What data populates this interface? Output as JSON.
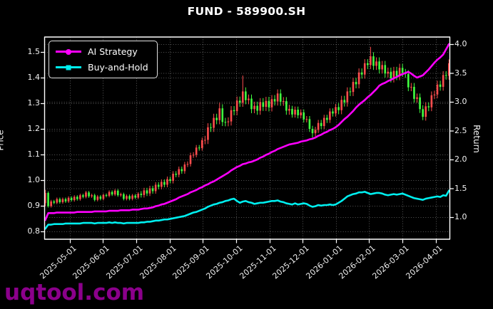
{
  "title": "FUND - 589900.SH",
  "watermark": "uqtool.com",
  "legend": [
    {
      "label": "AI Strategy",
      "color": "#FF00FF",
      "marker": "circle"
    },
    {
      "label": "Buy-and-Hold",
      "color": "#00EFEF",
      "marker": "square"
    }
  ],
  "axes": {
    "left_label": "Price",
    "right_label": "Return",
    "left_ticks": [
      0.8,
      0.9,
      1.0,
      1.1,
      1.2,
      1.3,
      1.4,
      1.5
    ],
    "right_ticks": [
      1.0,
      1.5,
      2.0,
      2.5,
      3.0,
      3.5,
      4.0
    ],
    "x_tick_labels": [
      "2025-05-01",
      "2025-06-01",
      "2025-07-01",
      "2025-08-01",
      "2025-09-01",
      "2025-10-01",
      "2025-11-01",
      "2025-12-01",
      "2026-01-01",
      "2026-02-01",
      "2026-03-01",
      "2026-04-01"
    ],
    "x_tick_pos": [
      8.4,
      19.85,
      31.3,
      42.8,
      54.2,
      65.7,
      77.2,
      88.6,
      100.1,
      111.5,
      123.0,
      134.5
    ]
  },
  "chart_data": {
    "type": "candlestick+line",
    "title": "FUND - 589900.SH",
    "ylabel_left": "Price",
    "ylabel_right": "Return",
    "ylim_left": [
      0.77,
      1.56
    ],
    "ylim_right": [
      0.62,
      4.12
    ],
    "grid": true,
    "legend_position": "upper-left",
    "colors": {
      "up": "#FF4D4D",
      "down": "#41FF41",
      "ai": "#FF00FF",
      "bh": "#00EFEF"
    },
    "candles_format": [
      "open",
      "high",
      "low",
      "close"
    ],
    "candles": [
      [
        0.91,
        0.962,
        0.898,
        0.95
      ],
      [
        0.95,
        0.956,
        0.893,
        0.899
      ],
      [
        0.899,
        0.923,
        0.893,
        0.917
      ],
      [
        0.917,
        0.923,
        0.906,
        0.912
      ],
      [
        0.912,
        0.932,
        0.906,
        0.926
      ],
      [
        0.926,
        0.932,
        0.908,
        0.914
      ],
      [
        0.914,
        0.932,
        0.908,
        0.926
      ],
      [
        0.926,
        0.932,
        0.911,
        0.917
      ],
      [
        0.917,
        0.937,
        0.911,
        0.931
      ],
      [
        0.931,
        0.937,
        0.916,
        0.922
      ],
      [
        0.922,
        0.941,
        0.916,
        0.935
      ],
      [
        0.935,
        0.941,
        0.92,
        0.926
      ],
      [
        0.926,
        0.947,
        0.92,
        0.941
      ],
      [
        0.941,
        0.947,
        0.929,
        0.935
      ],
      [
        0.935,
        0.958,
        0.929,
        0.952
      ],
      [
        0.952,
        0.958,
        0.931,
        0.937
      ],
      [
        0.937,
        0.947,
        0.931,
        0.941
      ],
      [
        0.941,
        0.947,
        0.917,
        0.923
      ],
      [
        0.923,
        0.942,
        0.917,
        0.936
      ],
      [
        0.936,
        0.942,
        0.921,
        0.927
      ],
      [
        0.927,
        0.948,
        0.921,
        0.942
      ],
      [
        0.942,
        0.948,
        0.933,
        0.939
      ],
      [
        0.939,
        0.96,
        0.933,
        0.954
      ],
      [
        0.954,
        0.96,
        0.938,
        0.944
      ],
      [
        0.944,
        0.965,
        0.938,
        0.959
      ],
      [
        0.959,
        0.965,
        0.935,
        0.941
      ],
      [
        0.941,
        0.951,
        0.935,
        0.945
      ],
      [
        0.945,
        0.951,
        0.921,
        0.927
      ],
      [
        0.927,
        0.944,
        0.921,
        0.938
      ],
      [
        0.938,
        0.944,
        0.921,
        0.927
      ],
      [
        0.927,
        0.946,
        0.921,
        0.94
      ],
      [
        0.94,
        0.946,
        0.926,
        0.932
      ],
      [
        0.932,
        0.953,
        0.926,
        0.947
      ],
      [
        0.947,
        0.957,
        0.932,
        0.942
      ],
      [
        0.942,
        0.97,
        0.932,
        0.96
      ],
      [
        0.96,
        0.97,
        0.938,
        0.948
      ],
      [
        0.948,
        0.978,
        0.938,
        0.968
      ],
      [
        0.968,
        0.978,
        0.947,
        0.957
      ],
      [
        0.957,
        0.992,
        0.947,
        0.982
      ],
      [
        0.982,
        0.992,
        0.964,
        0.974
      ],
      [
        0.974,
        1.003,
        0.964,
        0.993
      ],
      [
        0.993,
        1.003,
        0.972,
        0.982
      ],
      [
        0.982,
        1.014,
        0.972,
        1.004
      ],
      [
        1.004,
        1.014,
        0.987,
        0.997
      ],
      [
        0.997,
        1.035,
        0.987,
        1.025
      ],
      [
        1.025,
        1.035,
        1.011,
        1.021
      ],
      [
        1.021,
        1.053,
        1.011,
        1.043
      ],
      [
        1.043,
        1.053,
        1.025,
        1.035
      ],
      [
        1.035,
        1.071,
        1.025,
        1.061
      ],
      [
        1.061,
        1.073,
        1.051,
        1.063
      ],
      [
        1.063,
        1.107,
        1.053,
        1.097
      ],
      [
        1.097,
        1.109,
        1.087,
        1.099
      ],
      [
        1.099,
        1.137,
        1.089,
        1.127
      ],
      [
        1.127,
        1.137,
        1.115,
        1.125
      ],
      [
        1.125,
        1.166,
        1.115,
        1.156
      ],
      [
        1.156,
        1.173,
        1.14,
        1.157
      ],
      [
        1.157,
        1.222,
        1.141,
        1.206
      ],
      [
        1.206,
        1.222,
        1.188,
        1.204
      ],
      [
        1.204,
        1.259,
        1.188,
        1.243
      ],
      [
        1.243,
        1.259,
        1.218,
        1.234
      ],
      [
        1.234,
        1.302,
        1.218,
        1.28
      ],
      [
        1.28,
        1.296,
        1.211,
        1.227
      ],
      [
        1.227,
        1.243,
        1.21,
        1.226
      ],
      [
        1.226,
        1.245,
        1.21,
        1.229
      ],
      [
        1.229,
        1.289,
        1.213,
        1.273
      ],
      [
        1.273,
        1.289,
        1.253,
        1.269
      ],
      [
        1.269,
        1.326,
        1.253,
        1.31
      ],
      [
        1.31,
        1.326,
        1.286,
        1.302
      ],
      [
        1.302,
        1.408,
        1.286,
        1.346
      ],
      [
        1.346,
        1.362,
        1.296,
        1.312
      ],
      [
        1.312,
        1.334,
        1.296,
        1.318
      ],
      [
        1.318,
        1.334,
        1.261,
        1.277
      ],
      [
        1.277,
        1.306,
        1.261,
        1.29
      ],
      [
        1.29,
        1.306,
        1.255,
        1.271
      ],
      [
        1.271,
        1.32,
        1.255,
        1.304
      ],
      [
        1.304,
        1.32,
        1.27,
        1.286
      ],
      [
        1.286,
        1.325,
        1.27,
        1.309
      ],
      [
        1.309,
        1.325,
        1.268,
        1.284
      ],
      [
        1.284,
        1.332,
        1.268,
        1.316
      ],
      [
        1.316,
        1.332,
        1.291,
        1.307
      ],
      [
        1.307,
        1.354,
        1.291,
        1.338
      ],
      [
        1.338,
        1.354,
        1.29,
        1.306
      ],
      [
        1.306,
        1.324,
        1.29,
        1.308
      ],
      [
        1.308,
        1.324,
        1.255,
        1.271
      ],
      [
        1.271,
        1.294,
        1.255,
        1.278
      ],
      [
        1.278,
        1.29,
        1.244,
        1.256
      ],
      [
        1.256,
        1.287,
        1.244,
        1.275
      ],
      [
        1.275,
        1.287,
        1.241,
        1.253
      ],
      [
        1.253,
        1.276,
        1.241,
        1.264
      ],
      [
        1.264,
        1.276,
        1.225,
        1.237
      ],
      [
        1.237,
        1.25,
        1.225,
        1.238
      ],
      [
        1.238,
        1.25,
        1.188,
        1.2
      ],
      [
        1.2,
        1.212,
        1.166,
        1.183
      ],
      [
        1.183,
        1.208,
        1.171,
        1.196
      ],
      [
        1.196,
        1.235,
        1.184,
        1.223
      ],
      [
        1.223,
        1.235,
        1.199,
        1.211
      ],
      [
        1.211,
        1.255,
        1.199,
        1.243
      ],
      [
        1.243,
        1.255,
        1.223,
        1.235
      ],
      [
        1.235,
        1.28,
        1.223,
        1.268
      ],
      [
        1.268,
        1.28,
        1.248,
        1.26
      ],
      [
        1.26,
        1.297,
        1.248,
        1.285
      ],
      [
        1.285,
        1.301,
        1.257,
        1.273
      ],
      [
        1.273,
        1.329,
        1.257,
        1.313
      ],
      [
        1.313,
        1.329,
        1.287,
        1.303
      ],
      [
        1.303,
        1.362,
        1.287,
        1.346
      ],
      [
        1.346,
        1.362,
        1.328,
        1.344
      ],
      [
        1.344,
        1.399,
        1.328,
        1.383
      ],
      [
        1.383,
        1.399,
        1.358,
        1.374
      ],
      [
        1.374,
        1.436,
        1.358,
        1.42
      ],
      [
        1.42,
        1.436,
        1.396,
        1.412
      ],
      [
        1.412,
        1.472,
        1.396,
        1.456
      ],
      [
        1.456,
        1.472,
        1.433,
        1.449
      ],
      [
        1.449,
        1.52,
        1.433,
        1.483
      ],
      [
        1.483,
        1.499,
        1.43,
        1.446
      ],
      [
        1.446,
        1.479,
        1.43,
        1.463
      ],
      [
        1.463,
        1.479,
        1.416,
        1.432
      ],
      [
        1.432,
        1.465,
        1.416,
        1.449
      ],
      [
        1.449,
        1.465,
        1.4,
        1.416
      ],
      [
        1.416,
        1.439,
        1.4,
        1.423
      ],
      [
        1.423,
        1.439,
        1.381,
        1.397
      ],
      [
        1.397,
        1.442,
        1.381,
        1.426
      ],
      [
        1.426,
        1.442,
        1.39,
        1.406
      ],
      [
        1.406,
        1.454,
        1.39,
        1.438
      ],
      [
        1.438,
        1.454,
        1.403,
        1.419
      ],
      [
        1.419,
        1.434,
        1.399,
        1.414
      ],
      [
        1.414,
        1.429,
        1.347,
        1.362
      ],
      [
        1.362,
        1.379,
        1.347,
        1.364
      ],
      [
        1.364,
        1.379,
        1.302,
        1.317
      ],
      [
        1.317,
        1.338,
        1.302,
        1.323
      ],
      [
        1.323,
        1.338,
        1.262,
        1.277
      ],
      [
        1.277,
        1.292,
        1.234,
        1.247
      ],
      [
        1.247,
        1.303,
        1.232,
        1.288
      ],
      [
        1.288,
        1.303,
        1.269,
        1.284
      ],
      [
        1.284,
        1.346,
        1.269,
        1.331
      ],
      [
        1.331,
        1.349,
        1.316,
        1.334
      ],
      [
        1.334,
        1.388,
        1.319,
        1.373
      ],
      [
        1.373,
        1.388,
        1.349,
        1.364
      ],
      [
        1.364,
        1.425,
        1.349,
        1.41
      ],
      [
        1.41,
        1.425,
        1.392,
        1.407
      ],
      [
        1.407,
        1.471,
        1.392,
        1.456
      ]
    ],
    "series": [
      {
        "name": "AI Strategy",
        "axis": "right",
        "color": "#FF00FF",
        "values": [
          0.95,
          1.07,
          1.07,
          1.07,
          1.08,
          1.08,
          1.08,
          1.08,
          1.08,
          1.08,
          1.08,
          1.09,
          1.09,
          1.09,
          1.09,
          1.09,
          1.09,
          1.1,
          1.1,
          1.1,
          1.1,
          1.1,
          1.11,
          1.11,
          1.11,
          1.11,
          1.12,
          1.12,
          1.12,
          1.12,
          1.13,
          1.13,
          1.13,
          1.14,
          1.15,
          1.15,
          1.16,
          1.17,
          1.19,
          1.2,
          1.22,
          1.23,
          1.25,
          1.27,
          1.29,
          1.31,
          1.34,
          1.36,
          1.38,
          1.4,
          1.43,
          1.45,
          1.47,
          1.5,
          1.52,
          1.55,
          1.57,
          1.6,
          1.62,
          1.65,
          1.68,
          1.71,
          1.74,
          1.77,
          1.81,
          1.84,
          1.87,
          1.89,
          1.92,
          1.93,
          1.95,
          1.96,
          1.98,
          2.0,
          2.03,
          2.05,
          2.08,
          2.1,
          2.13,
          2.15,
          2.18,
          2.2,
          2.22,
          2.24,
          2.26,
          2.27,
          2.28,
          2.29,
          2.31,
          2.32,
          2.33,
          2.35,
          2.36,
          2.38,
          2.41,
          2.43,
          2.46,
          2.48,
          2.51,
          2.53,
          2.56,
          2.6,
          2.65,
          2.7,
          2.74,
          2.79,
          2.84,
          2.9,
          2.95,
          2.99,
          3.03,
          3.08,
          3.12,
          3.17,
          3.22,
          3.28,
          3.31,
          3.33,
          3.36,
          3.38,
          3.41,
          3.43,
          3.46,
          3.48,
          3.5,
          3.52,
          3.49,
          3.45,
          3.42,
          3.44,
          3.46,
          3.51,
          3.56,
          3.62,
          3.68,
          3.73,
          3.77,
          3.82,
          3.91,
          4.0
        ]
      },
      {
        "name": "Buy-and-Hold",
        "axis": "right",
        "color": "#00EFEF",
        "values": [
          0.8,
          0.87,
          0.87,
          0.88,
          0.88,
          0.88,
          0.88,
          0.89,
          0.89,
          0.89,
          0.89,
          0.89,
          0.89,
          0.9,
          0.9,
          0.9,
          0.9,
          0.89,
          0.9,
          0.9,
          0.9,
          0.9,
          0.91,
          0.9,
          0.91,
          0.9,
          0.9,
          0.89,
          0.9,
          0.9,
          0.9,
          0.9,
          0.9,
          0.91,
          0.91,
          0.92,
          0.92,
          0.93,
          0.94,
          0.94,
          0.95,
          0.96,
          0.96,
          0.97,
          0.98,
          0.99,
          1.0,
          1.01,
          1.02,
          1.04,
          1.06,
          1.08,
          1.09,
          1.11,
          1.13,
          1.15,
          1.18,
          1.2,
          1.22,
          1.23,
          1.25,
          1.26,
          1.28,
          1.29,
          1.31,
          1.32,
          1.28,
          1.25,
          1.27,
          1.28,
          1.26,
          1.25,
          1.23,
          1.24,
          1.25,
          1.25,
          1.26,
          1.27,
          1.28,
          1.28,
          1.29,
          1.27,
          1.26,
          1.24,
          1.23,
          1.22,
          1.24,
          1.22,
          1.23,
          1.24,
          1.23,
          1.2,
          1.18,
          1.19,
          1.21,
          1.2,
          1.21,
          1.21,
          1.22,
          1.21,
          1.22,
          1.25,
          1.28,
          1.32,
          1.36,
          1.38,
          1.4,
          1.41,
          1.43,
          1.43,
          1.44,
          1.42,
          1.4,
          1.41,
          1.42,
          1.42,
          1.41,
          1.39,
          1.38,
          1.39,
          1.4,
          1.39,
          1.4,
          1.41,
          1.39,
          1.37,
          1.35,
          1.33,
          1.32,
          1.31,
          1.3,
          1.32,
          1.33,
          1.34,
          1.35,
          1.36,
          1.35,
          1.38,
          1.37,
          1.46
        ]
      }
    ]
  }
}
